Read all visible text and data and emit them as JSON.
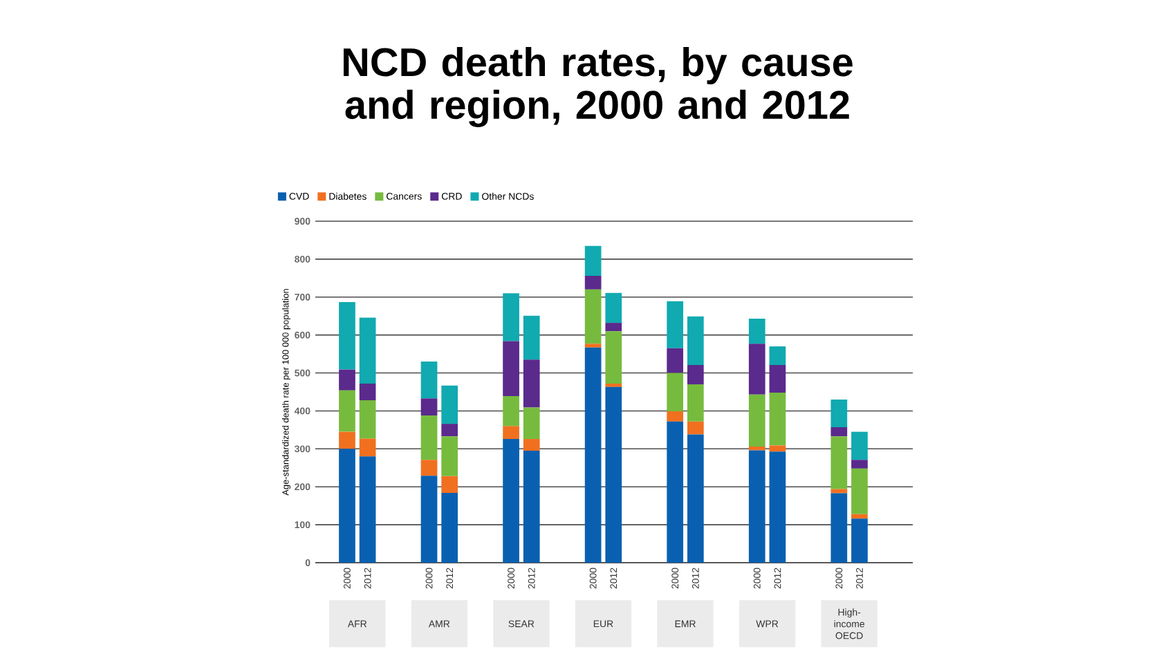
{
  "chart_data": {
    "type": "bar",
    "stacked": true,
    "title": "NCD death rates, by cause and region, 2000 and 2012",
    "ylabel": "Age-standardized death rate per 100 000 population",
    "categories": [
      "2000",
      "2012",
      "2000",
      "2012",
      "2000",
      "2012",
      "2000",
      "2012",
      "2000",
      "2012",
      "2000",
      "2012",
      "2000",
      "2012"
    ],
    "annotations": [
      "AFR",
      "AMR",
      "SEAR",
      "EUR",
      "EMR",
      "WPR",
      "High-income OECD"
    ],
    "series": [
      {
        "name": "CVD",
        "color": "#0a60b0",
        "values": [
          300,
          280,
          229,
          184,
          326,
          295,
          567,
          463,
          372,
          338,
          296,
          293,
          183,
          116
        ]
      },
      {
        "name": "Diabetes",
        "color": "#f07020",
        "values": [
          45,
          47,
          42,
          44,
          34,
          31,
          10,
          9,
          27,
          34,
          10,
          16,
          11,
          12
        ]
      },
      {
        "name": "Cancers",
        "color": "#76bb3e",
        "values": [
          109,
          101,
          117,
          105,
          79,
          83,
          143,
          138,
          101,
          98,
          137,
          139,
          139,
          120
        ]
      },
      {
        "name": "CRD",
        "color": "#5a2a8c",
        "values": [
          55,
          44,
          45,
          33,
          145,
          126,
          36,
          22,
          65,
          51,
          134,
          73,
          24,
          23
        ]
      },
      {
        "name": "Other NCDs",
        "color": "#10aab0",
        "values": [
          178,
          174,
          97,
          101,
          126,
          116,
          79,
          79,
          124,
          128,
          66,
          49,
          73,
          74
        ]
      }
    ],
    "ylim": [
      0,
      900
    ],
    "yticks": [
      0,
      100,
      200,
      300,
      400,
      500,
      600,
      700,
      800,
      900
    ],
    "grid": "y",
    "legend": "top"
  }
}
